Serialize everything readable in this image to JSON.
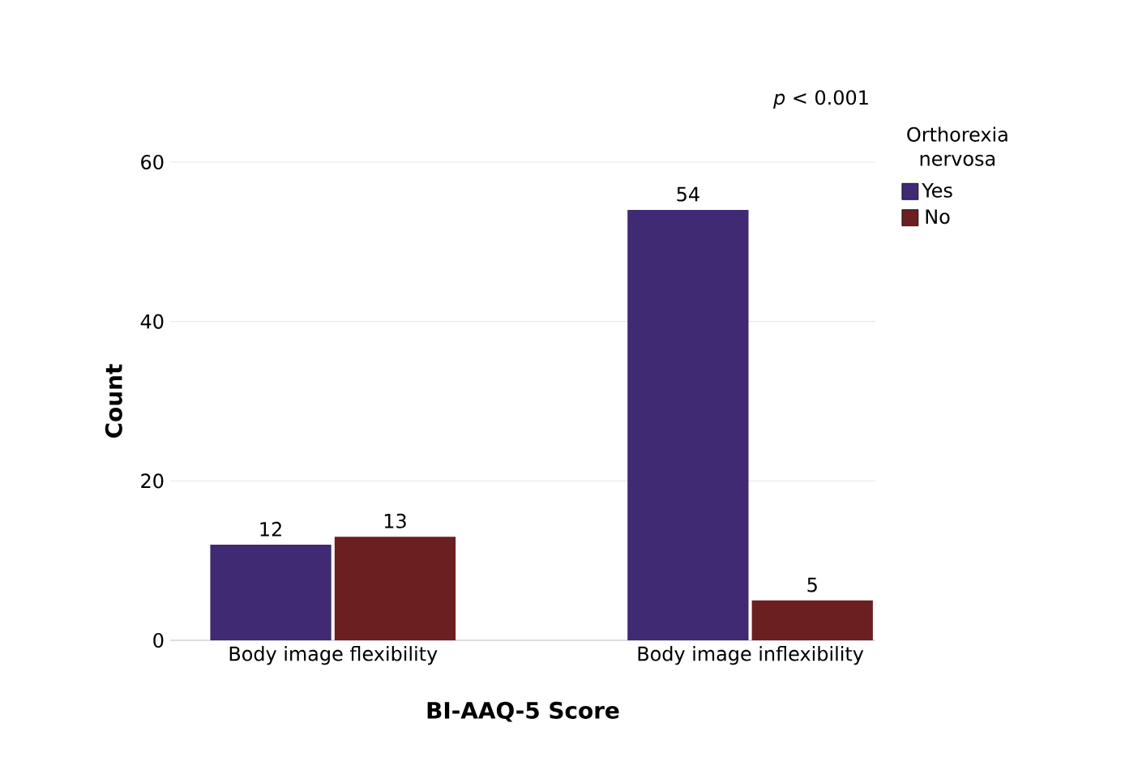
{
  "chart_data": {
    "type": "bar",
    "xlabel": "BI-AAQ-5 Score",
    "ylabel": "Count",
    "legend_title": "Orthorexia nervosa",
    "categories": [
      "Body image flexibility",
      "Body image inflexibility"
    ],
    "series": [
      {
        "name": "Yes",
        "color": "#3f2a73",
        "values": [
          12,
          54
        ]
      },
      {
        "name": "No",
        "color": "#6b1f20",
        "values": [
          13,
          5
        ]
      }
    ],
    "ylim": [
      0,
      60
    ],
    "yticks": [
      0,
      20,
      40,
      60
    ],
    "grid": "y",
    "legend": "right",
    "data_labels": true,
    "annotations": [
      "*p* < 0.001"
    ]
  }
}
